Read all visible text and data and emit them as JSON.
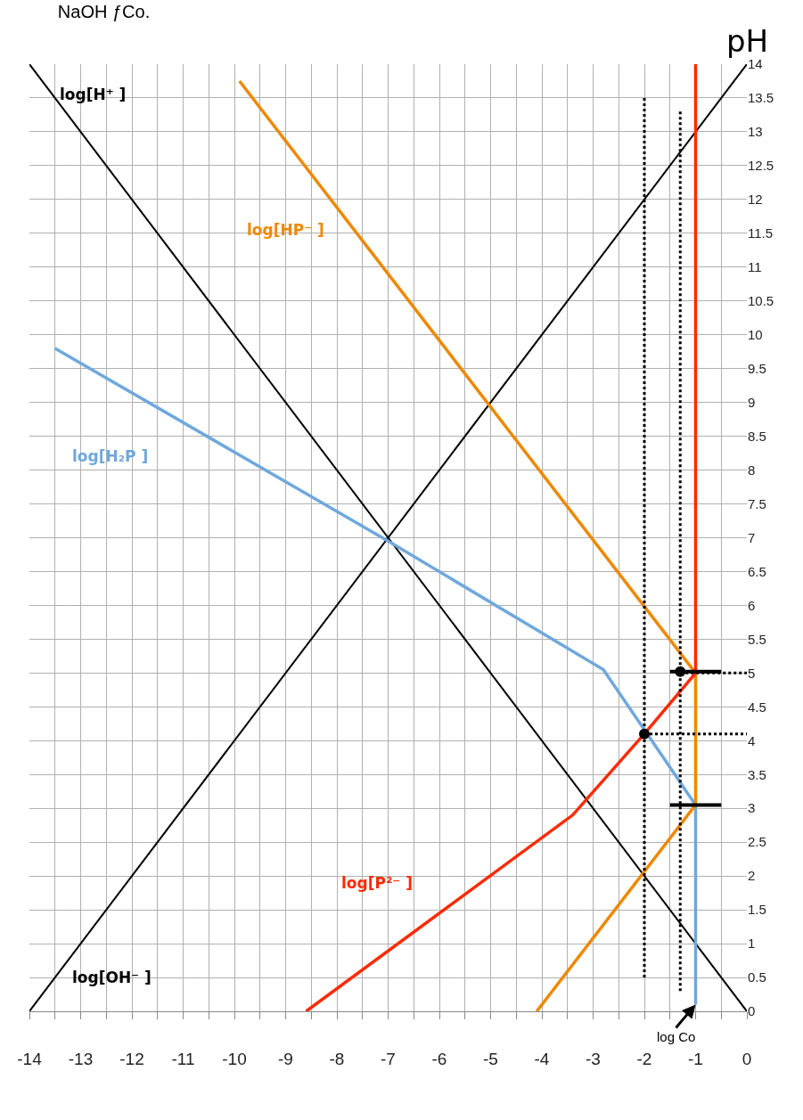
{
  "chart_data": {
    "type": "line",
    "title": "NaOH ƒCo.",
    "ylabel": "pH",
    "xlim": [
      -14,
      0
    ],
    "ylim": [
      0,
      14
    ],
    "xticks": [
      -14,
      {
        "value": -13.5,
        "label": null
      },
      -13,
      {
        "value": -12.5,
        "label": null
      },
      -12,
      {
        "value": -11.5,
        "label": null
      },
      -11,
      {
        "value": -10.5,
        "label": null
      },
      -10,
      {
        "value": -9.5,
        "label": null
      },
      -9,
      {
        "value": -8.5,
        "label": null
      },
      -8,
      {
        "value": -7.5,
        "label": null
      },
      -7,
      {
        "value": -6.5,
        "label": null
      },
      -6,
      {
        "value": -5.5,
        "label": null
      },
      -5,
      {
        "value": -4.5,
        "label": null
      },
      -4,
      {
        "value": -3.5,
        "label": null
      },
      -3,
      {
        "value": -2.5,
        "label": null
      },
      -2,
      {
        "value": -1.5,
        "label": null
      },
      -1,
      {
        "value": -0.5,
        "label": null
      },
      0
    ],
    "yticks": [
      0,
      0.5,
      1,
      1.5,
      2,
      2.5,
      3,
      3.5,
      4,
      4.5,
      5,
      5.5,
      6,
      6.5,
      7,
      7.5,
      8,
      8.5,
      9,
      9.5,
      10,
      10.5,
      11,
      11.5,
      12,
      12.5,
      13,
      13.5,
      14
    ],
    "grid": true,
    "legend": false,
    "marker": "none",
    "line_style": "solid",
    "series": [
      {
        "name": "log[H⁺ ]",
        "color": "#000000",
        "x": [
          -14,
          0
        ],
        "values": [
          14,
          0
        ]
      },
      {
        "name": "log[OH⁻ ]",
        "color": "#000000",
        "x": [
          -14,
          0
        ],
        "values": [
          0,
          14
        ]
      },
      {
        "name": "log[H₂P ]",
        "color": "#6fa8dc",
        "x": [
          -13.5,
          -7,
          -2.8,
          -1,
          -1
        ],
        "values": [
          9.8,
          6.95,
          5.05,
          3.05,
          0.1
        ]
      },
      {
        "name": "log[HP⁻ ]",
        "color": "#ee8800",
        "x": [
          -9.9,
          -1,
          -1,
          -4.1
        ],
        "values": [
          13.75,
          5,
          3.05,
          0
        ]
      },
      {
        "name": "log[P²⁻ ]",
        "color": "#ff2a00",
        "x": [
          -8.6,
          -3.4,
          -2,
          -1,
          -1
        ],
        "values": [
          0,
          2.9,
          4.1,
          5,
          14
        ]
      },
      {
        "color": "#000000",
        "line_style": "dotted",
        "x": [
          -2,
          -2
        ],
        "values": [
          0.5,
          13.5
        ]
      },
      {
        "color": "#000000",
        "line_style": "dotted",
        "x": [
          -1.3,
          -1.3
        ],
        "values": [
          0.3,
          13.3
        ]
      },
      {
        "color": "#000000",
        "line_style": "dotted",
        "x": [
          -1.3,
          0
        ],
        "values": [
          5,
          5
        ]
      },
      {
        "color": "#000000",
        "line_style": "dotted",
        "x": [
          -2,
          0
        ],
        "values": [
          4.1,
          4.1
        ]
      },
      {
        "color": "#000000",
        "x": [
          -1.5,
          -0.5
        ],
        "values": [
          5.02,
          5.02
        ]
      },
      {
        "color": "#000000",
        "x": [
          -1.5,
          -0.5
        ],
        "values": [
          3.05,
          3.05
        ]
      },
      {
        "type": "scatter",
        "marker": "circle",
        "color": "#000000",
        "x": [
          -1.3,
          -2
        ],
        "values": [
          5.02,
          4.1
        ]
      }
    ],
    "annotations": [
      {
        "text": "log Co",
        "x": -1,
        "y": 0.1
      }
    ]
  }
}
